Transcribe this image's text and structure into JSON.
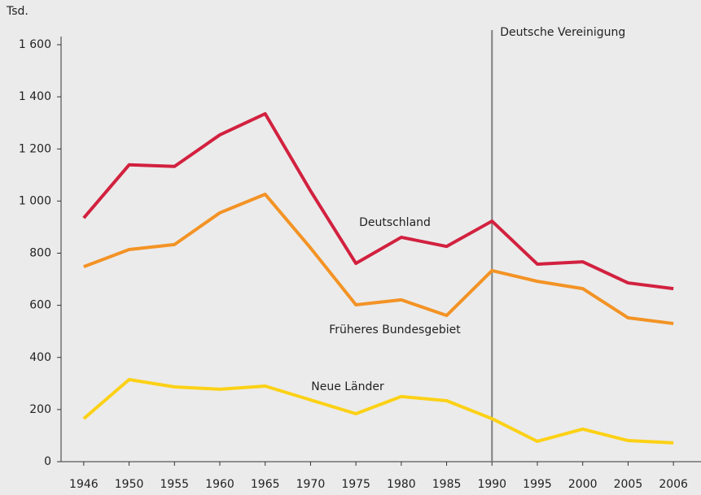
{
  "chart_data": {
    "type": "line",
    "y_label": "Tsd.",
    "categories": [
      "1946",
      "1950",
      "1955",
      "1960",
      "1965",
      "1970",
      "1975",
      "1980",
      "1985",
      "1990",
      "1995",
      "2000",
      "2005",
      "2006"
    ],
    "series": [
      {
        "name": "Deutschland",
        "color": "#d2213f",
        "values": [
          935,
          1139,
          1133,
          1254,
          1335,
          1039,
          761,
          861,
          826,
          923,
          758,
          767,
          686,
          664
        ]
      },
      {
        "name": "Früheres Bundesgebiet",
        "color": "#f39325",
        "values": [
          748,
          814,
          833,
          955,
          1026,
          820,
          602,
          621,
          561,
          733,
          692,
          664,
          552,
          530
        ]
      },
      {
        "name": "Neue Länder",
        "color": "#fcd116",
        "values": [
          165,
          315,
          287,
          278,
          290,
          237,
          184,
          250,
          234,
          165,
          78,
          125,
          81,
          72
        ]
      }
    ],
    "ylim": [
      0,
      1600
    ],
    "yticks": [
      0,
      200,
      400,
      600,
      800,
      {
        "value": 1000,
        "label": "1 000"
      },
      {
        "value": 1200,
        "label": "1 200"
      },
      {
        "value": 1400,
        "label": "1 400"
      },
      {
        "value": 1600,
        "label": "1 600"
      }
    ],
    "annotations": [
      {
        "text": "Deutsche Vereinigung",
        "x": "1990"
      }
    ],
    "grid": false
  }
}
